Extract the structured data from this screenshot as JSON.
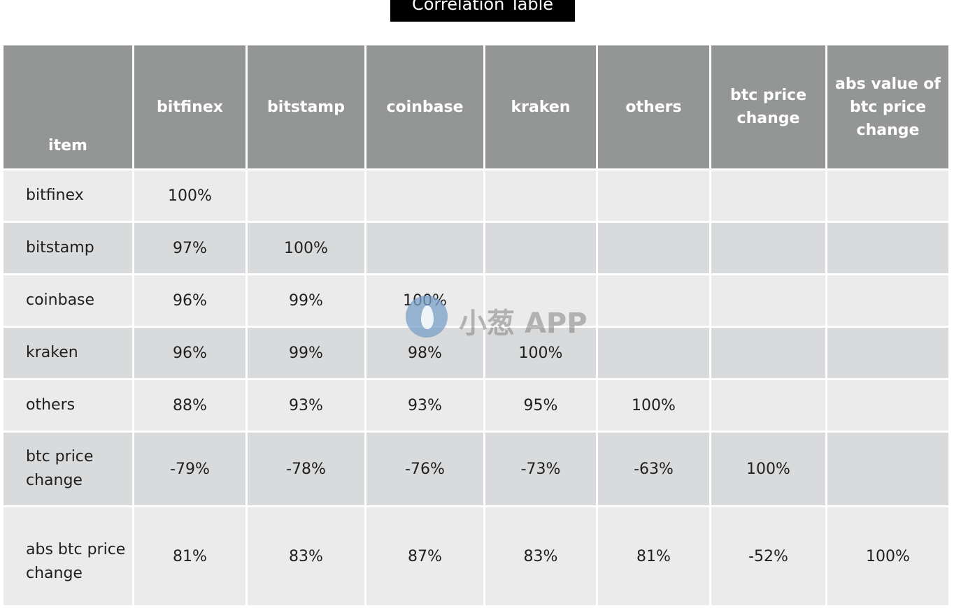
{
  "title": "Correlation Table",
  "columns": [
    "item",
    "bitfinex",
    "bitstamp",
    "coinbase",
    "kraken",
    "others",
    "btc price change",
    "abs value of btc price change"
  ],
  "rows": [
    {
      "label": "bitfinex",
      "values": [
        "100%",
        "",
        "",
        "",
        "",
        "",
        ""
      ]
    },
    {
      "label": "bitstamp",
      "values": [
        "97%",
        "100%",
        "",
        "",
        "",
        "",
        ""
      ]
    },
    {
      "label": "coinbase",
      "values": [
        "96%",
        "99%",
        "100%",
        "",
        "",
        "",
        ""
      ]
    },
    {
      "label": "kraken",
      "values": [
        "96%",
        "99%",
        "98%",
        "100%",
        "",
        "",
        ""
      ]
    },
    {
      "label": "others",
      "values": [
        "88%",
        "93%",
        "93%",
        "95%",
        "100%",
        "",
        ""
      ]
    },
    {
      "label": "btc price change",
      "values": [
        "-79%",
        "-78%",
        "-76%",
        "-73%",
        "-63%",
        "100%",
        ""
      ]
    },
    {
      "label": "abs btc price change",
      "values": [
        "81%",
        "83%",
        "87%",
        "83%",
        "81%",
        "-52%",
        "100%"
      ]
    }
  ],
  "watermark": {
    "text": "小葱 APP",
    "icon": "leaf-logo-icon"
  },
  "colors": {
    "header_bg": "#939695",
    "row_light": "#ebebeb",
    "row_dark": "#d9dadb",
    "title_bg": "#000000"
  }
}
